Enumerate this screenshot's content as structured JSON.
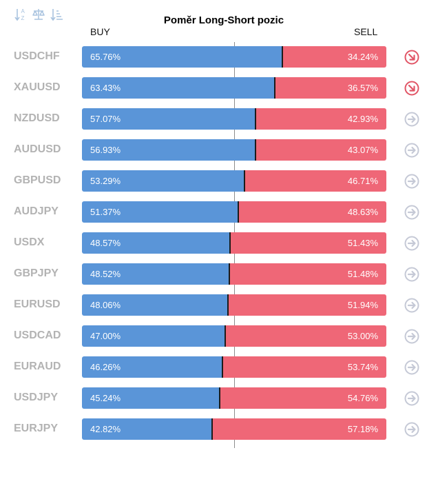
{
  "chart_data": {
    "type": "bar",
    "title": "Poměr Long-Short pozic",
    "buy_label": "BUY",
    "sell_label": "SELL",
    "categories": [
      "USDCHF",
      "XAUUSD",
      "NZDUSD",
      "AUDUSD",
      "GBPUSD",
      "AUDJPY",
      "USDX",
      "GBPJPY",
      "EURUSD",
      "USDCAD",
      "EURAUD",
      "USDJPY",
      "EURJPY"
    ],
    "series": [
      {
        "name": "BUY",
        "values": [
          65.76,
          63.43,
          57.07,
          56.93,
          53.29,
          51.37,
          48.57,
          48.52,
          48.06,
          47.0,
          46.26,
          45.24,
          42.82
        ]
      },
      {
        "name": "SELL",
        "values": [
          34.24,
          36.57,
          42.93,
          43.07,
          46.71,
          48.63,
          51.43,
          51.48,
          51.94,
          53.0,
          53.74,
          54.76,
          57.18
        ]
      }
    ],
    "buy_text": [
      "65.76%",
      "63.43%",
      "57.07%",
      "56.93%",
      "53.29%",
      "51.37%",
      "48.57%",
      "48.52%",
      "48.06%",
      "47.00%",
      "46.26%",
      "45.24%",
      "42.82%"
    ],
    "sell_text": [
      "34.24%",
      "36.57%",
      "42.93%",
      "43.07%",
      "46.71%",
      "48.63%",
      "51.43%",
      "51.48%",
      "51.94%",
      "53.00%",
      "53.74%",
      "54.76%",
      "57.18%"
    ],
    "trend_icons": [
      "arrow-down-right-icon",
      "arrow-down-right-icon",
      "arrow-right-icon",
      "arrow-right-icon",
      "arrow-right-icon",
      "arrow-right-icon",
      "arrow-right-icon",
      "arrow-right-icon",
      "arrow-right-icon",
      "arrow-right-icon",
      "arrow-right-icon",
      "arrow-right-icon",
      "arrow-right-icon"
    ],
    "ylim": [
      0,
      100
    ],
    "grid": false,
    "legend": "top"
  },
  "toolbar": {
    "icons": [
      "sort-alpha-icon",
      "balance-scale-icon",
      "sort-amount-icon"
    ]
  },
  "colors": {
    "buy": "#5a95d8",
    "sell": "#ef6777",
    "symbol": "#b3b3b3",
    "neutral_icon": "#c5c9d6",
    "down_icon": "#e15566",
    "toolbar_icon": "#a9c3df"
  }
}
